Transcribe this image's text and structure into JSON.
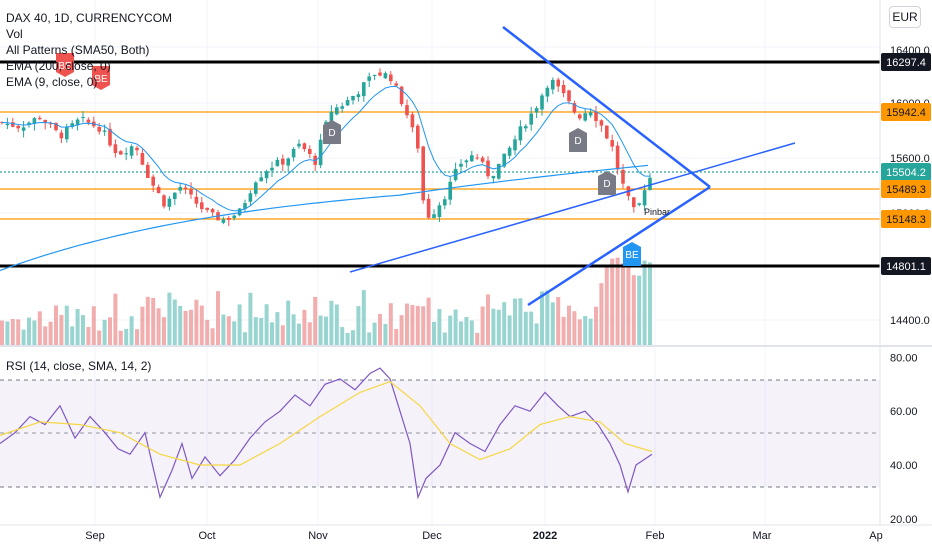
{
  "header": {
    "symbol": "DAX 40, 1D, CURRENCYCOM",
    "currency": "EUR",
    "indicators": [
      "Vol",
      "All Patterns (SMA50, Both)",
      "EMA (200, close, 0)",
      "EMA (9, close, 0)"
    ]
  },
  "rsi_legend": "RSI (14, close, SMA, 14, 2)",
  "chart_data": [
    {
      "type": "candlestick",
      "title": "DAX 40, 1D, CURRENCYCOM",
      "x_ticks": [
        "Sep",
        "Oct",
        "Nov",
        "Dec",
        "2022",
        "Feb",
        "Mar",
        "Ap"
      ],
      "y_ticks": [
        "16400.0",
        "16000.0",
        "15600.0",
        "15200.0",
        "14400.0"
      ],
      "ylim": [
        14250,
        16480
      ],
      "horizontal_levels": [
        {
          "value": 16297.4,
          "label": "16297.4",
          "color": "#000000"
        },
        {
          "value": 15942.4,
          "label": "15942.4",
          "color": "#ff9800"
        },
        {
          "value": 15504.2,
          "label": "15504.2",
          "color": "#26a69a"
        },
        {
          "value": 15489.3,
          "label": "15489.3",
          "color": "#ff9800"
        },
        {
          "value": 15148.3,
          "label": "15148.3",
          "color": "#ff9800"
        },
        {
          "value": 14801.1,
          "label": "14801.1",
          "color": "#000000"
        }
      ],
      "pattern_labels": [
        "BE",
        "BE",
        "D",
        "D",
        "D",
        "BE"
      ],
      "annotations": [
        "Pinbar"
      ],
      "series": [
        {
          "name": "EMA (200, close, 0)",
          "color": "#2196f3"
        },
        {
          "name": "EMA (9, close, 0)",
          "color": "#2196f3"
        },
        {
          "name": "Vol",
          "color": "#ef9a9a"
        }
      ]
    },
    {
      "type": "line",
      "title": "RSI (14, close, SMA, 14, 2)",
      "y_ticks": [
        "80.00",
        "60.00",
        "40.00",
        "20.00"
      ],
      "ylim": [
        18,
        82
      ],
      "band": [
        30,
        70
      ],
      "series": [
        {
          "name": "RSI",
          "color": "#7e57c2"
        },
        {
          "name": "RSI SMA",
          "color": "#f5d742"
        }
      ]
    }
  ],
  "colors": {
    "up": "#26a69a",
    "down": "#ef5350",
    "trendline": "#2962ff",
    "level_orange": "#ff9800",
    "level_black": "#000000"
  }
}
